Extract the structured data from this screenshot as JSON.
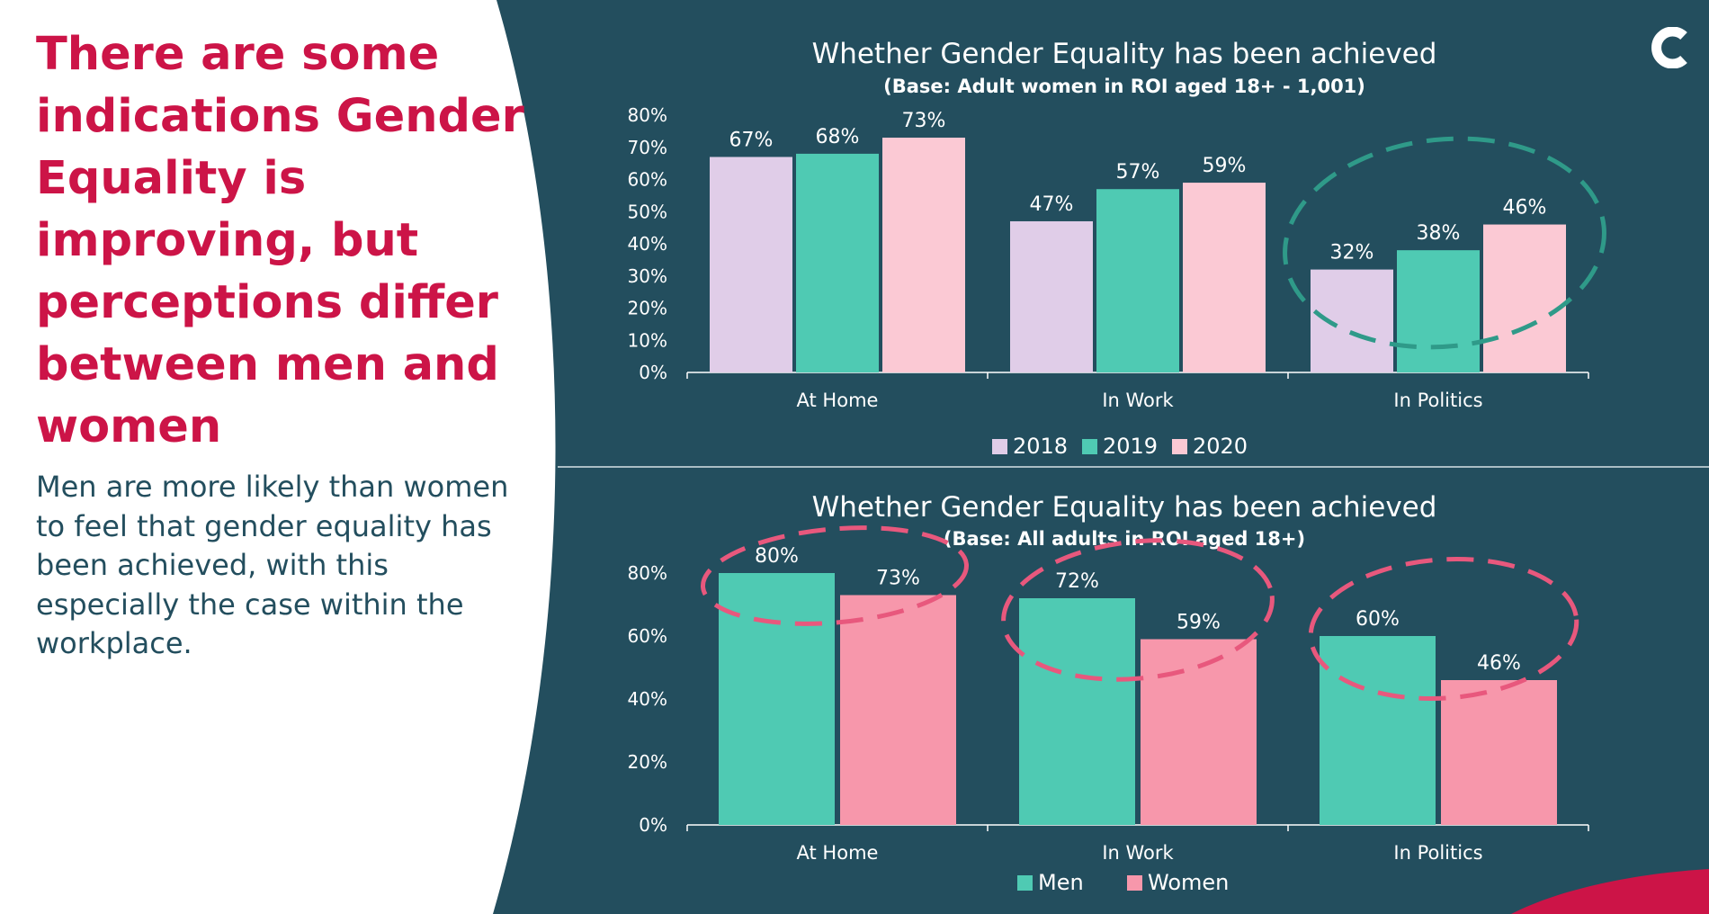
{
  "headline": "There are some indications Gender Equality is improving, but perceptions differ between men and women",
  "body": "Men are more likely than women to feel that gender equality has been achieved, with this especially the case within the workplace.",
  "logo_icon": "c-logo-icon",
  "colors": {
    "panel": "#234e5e",
    "headline": "#cc1447",
    "body_text": "#234e5e",
    "accent": "#cc1447",
    "c2018": "#e0cde8",
    "c2019": "#4fcab3",
    "c2020": "#fbc9d4",
    "men": "#4fcab3",
    "women": "#f797ab",
    "ellipse_top": "#2f9a89",
    "ellipse_bottom": "#e8587d"
  },
  "chart_data": [
    {
      "type": "bar",
      "title": "Whether Gender Equality has been achieved",
      "subtitle": "(Base: Adult women in ROI aged 18+ - 1,001)",
      "categories": [
        "At Home",
        "In Work",
        "In Politics"
      ],
      "series": [
        {
          "name": "2018",
          "values": [
            67,
            47,
            32
          ]
        },
        {
          "name": "2019",
          "values": [
            68,
            57,
            38
          ]
        },
        {
          "name": "2020",
          "values": [
            73,
            59,
            46
          ]
        }
      ],
      "data_labels": [
        [
          "67%",
          "47%",
          "32%"
        ],
        [
          "68%",
          "57%",
          "38%"
        ],
        [
          "73%",
          "59%",
          "46%"
        ]
      ],
      "ylim": [
        0,
        80
      ],
      "yticks": [
        0,
        10,
        20,
        30,
        40,
        50,
        60,
        70,
        80
      ],
      "ytick_labels": [
        "0%",
        "10%",
        "20%",
        "30%",
        "40%",
        "50%",
        "60%",
        "70%",
        "80%"
      ],
      "grid": false,
      "legend": "bottom",
      "annotation": "dashed ellipse highlighting In Politics"
    },
    {
      "type": "bar",
      "title": "Whether Gender Equality has been achieved",
      "subtitle": "(Base: All adults in ROI aged 18+)",
      "categories": [
        "At Home",
        "In Work",
        "In Politics"
      ],
      "series": [
        {
          "name": "Men",
          "values": [
            80,
            72,
            60
          ]
        },
        {
          "name": "Women",
          "values": [
            73,
            59,
            46
          ]
        }
      ],
      "data_labels": [
        [
          "80%",
          "72%",
          "60%"
        ],
        [
          "73%",
          "59%",
          "46%"
        ]
      ],
      "ylim": [
        0,
        80
      ],
      "yticks": [
        0,
        20,
        40,
        60,
        80
      ],
      "ytick_labels": [
        "0%",
        "20%",
        "40%",
        "60%",
        "80%"
      ],
      "grid": false,
      "legend": "bottom",
      "annotation": "dashed ellipses highlighting each category"
    }
  ]
}
